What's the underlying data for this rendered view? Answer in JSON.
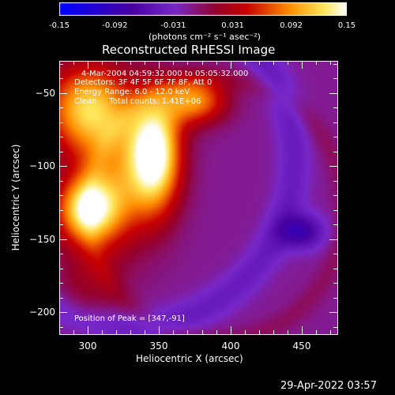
{
  "colorbar": {
    "ticks": [
      "-0.15",
      "-0.092",
      "-0.031",
      "0.031",
      "0.092",
      "0.15"
    ],
    "tick_values": [
      -0.15,
      -0.092,
      -0.031,
      0.031,
      0.092,
      0.15
    ],
    "range": [
      -0.15,
      0.15
    ],
    "units": "(photons cm⁻² s⁻¹ asec⁻²)"
  },
  "chart_data": {
    "type": "heatmap",
    "title": "Reconstructed RHESSI Image",
    "xlabel": "Heliocentric X (arcsec)",
    "ylabel": "Heliocentric Y (arcsec)",
    "xlim": [
      280,
      475
    ],
    "ylim": [
      -215,
      -28
    ],
    "xticks": [
      300,
      350,
      400,
      450
    ],
    "yticks": [
      -50,
      -100,
      -150,
      -200
    ],
    "xtick_labels": [
      "300",
      "350",
      "400",
      "450"
    ],
    "ytick_labels": [
      "−50",
      "−100",
      "−150",
      "−200"
    ],
    "colormap": "blue-purple-red-yellow-white",
    "annotations": [
      "4-Mar-2004 04:59:32.000 to 05:05:32.000",
      "Detectors: 3F 4F 5F 6F 7F 8F, Att 0",
      "Energy Range: 6.0 - 12.0 keV",
      "Clean     Total counts: 1.41E+06"
    ],
    "peak_label": "Position of Peak = [347,-91]",
    "peak": [
      347,
      -91
    ]
  },
  "footer": {
    "timestamp": "29-Apr-2022 03:57"
  }
}
